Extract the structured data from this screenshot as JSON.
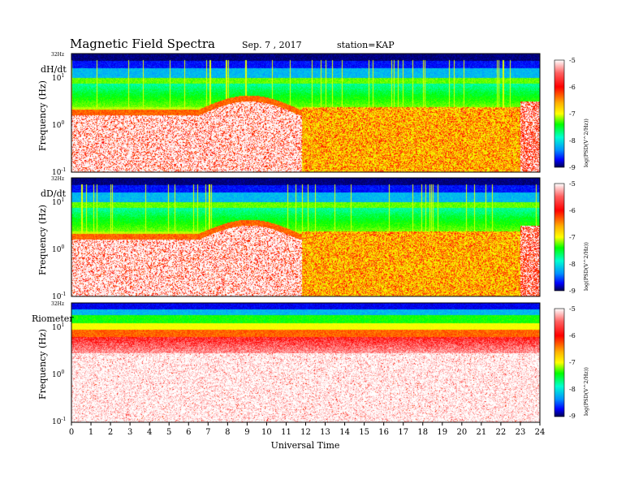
{
  "header": {
    "title": "Magnetic  Field  Spectra",
    "date": "Sep. 7  , 2017",
    "station": "station=KAP"
  },
  "chart_data": [
    {
      "type": "heatmap",
      "panel_label": "dH/dt",
      "ylabel": "Frequency  (Hz)",
      "top_label": "32Hz",
      "yscale": "log",
      "ylim": [
        0.1,
        32
      ],
      "y_ticks": [
        {
          "base": "10",
          "exp": "-1"
        },
        {
          "base": "10",
          "exp": "0"
        },
        {
          "base": "10",
          "exp": "1"
        }
      ],
      "xlim": [
        0,
        24
      ],
      "colorbar": {
        "label": "log(PSD(V^2/Hz))",
        "min": -9,
        "max": -5,
        "ticks": [
          "-5",
          "-6",
          "-7",
          "-8",
          "-9"
        ]
      }
    },
    {
      "type": "heatmap",
      "panel_label": "dD/dt",
      "ylabel": "Frequency  (Hz)",
      "top_label": "32Hz",
      "yscale": "log",
      "ylim": [
        0.1,
        32
      ],
      "y_ticks": [
        {
          "base": "10",
          "exp": "-1"
        },
        {
          "base": "10",
          "exp": "0"
        },
        {
          "base": "10",
          "exp": "1"
        }
      ],
      "xlim": [
        0,
        24
      ],
      "colorbar": {
        "label": "log(PSD(V^2/Hz))",
        "min": -9,
        "max": -5,
        "ticks": [
          "-5",
          "-6",
          "-7",
          "-8",
          "-9"
        ]
      }
    },
    {
      "type": "heatmap",
      "panel_label": "Riometer",
      "ylabel": "Frequency  (Hz)",
      "top_label": "32Hz",
      "yscale": "log",
      "ylim": [
        0.1,
        32
      ],
      "y_ticks": [
        {
          "base": "10",
          "exp": "-1"
        },
        {
          "base": "10",
          "exp": "0"
        },
        {
          "base": "10",
          "exp": "1"
        }
      ],
      "xlim": [
        0,
        24
      ],
      "colorbar": {
        "label": "log(PSD(V^2/Hz))",
        "min": -9,
        "max": -5,
        "ticks": [
          "-5",
          "-6",
          "-7",
          "-8",
          "-9"
        ]
      }
    }
  ],
  "x_axis": {
    "label": "Universal  Time",
    "ticks": [
      "0",
      "1",
      "2",
      "3",
      "4",
      "5",
      "6",
      "7",
      "8",
      "9",
      "10",
      "11",
      "12",
      "13",
      "14",
      "15",
      "16",
      "17",
      "18",
      "19",
      "20",
      "21",
      "22",
      "23",
      "24"
    ]
  },
  "colormap": [
    "#000060",
    "#0000ff",
    "#00a0ff",
    "#00ffc0",
    "#00ff00",
    "#c0ff00",
    "#ffff00",
    "#ffa000",
    "#ff0000",
    "#ffffff"
  ]
}
